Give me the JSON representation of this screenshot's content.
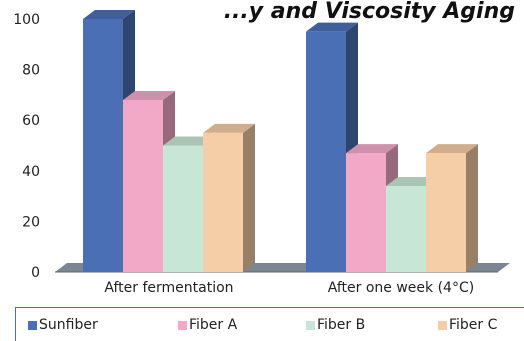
{
  "chart_data": {
    "type": "bar",
    "title": "...y and Viscosity Aging",
    "categories": [
      "After fermentation",
      "After one week (4°C)"
    ],
    "series": [
      {
        "name": "Sunfiber",
        "values": [
          100,
          95
        ],
        "color": "#4a6fb5"
      },
      {
        "name": "Fiber A",
        "values": [
          68,
          47
        ],
        "color": "#f2a9c8"
      },
      {
        "name": "Fiber B",
        "values": [
          50,
          34
        ],
        "color": "#c8e6d6"
      },
      {
        "name": "Fiber C",
        "values": [
          55,
          47
        ],
        "color": "#f5cda6"
      }
    ],
    "y_ticks": [
      "0",
      "20",
      "40",
      "60",
      "80",
      "100"
    ],
    "ylim": [
      0,
      100
    ],
    "grid": false,
    "legend_position": "bottom",
    "style": "3d-bars"
  }
}
